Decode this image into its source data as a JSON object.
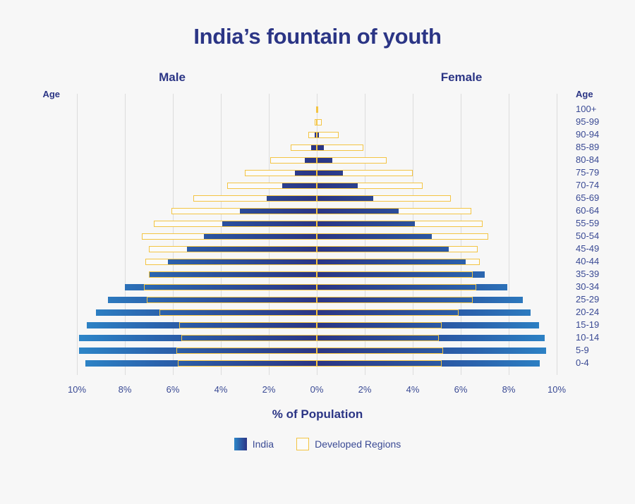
{
  "title": "India’s fountain of youth",
  "side_labels": {
    "male": "Male",
    "female": "Female"
  },
  "age_header": "Age",
  "xlabel": "% of Population",
  "x_ticks": [
    "10%",
    "8%",
    "6%",
    "4%",
    "2%",
    "0%",
    "2%",
    "4%",
    "6%",
    "8%",
    "10%"
  ],
  "legend": [
    {
      "name": "India",
      "swatch": "gradient-blue"
    },
    {
      "name": "Developed Regions",
      "swatch": "outline-yellow"
    }
  ],
  "colors": {
    "title": "#2b3585",
    "india_dark": "#2b3585",
    "india_light": "#2d86c8",
    "developed_outline": "#f3c443",
    "grid": "#dcdcdc",
    "background": "#f7f7f7"
  },
  "chart_data": {
    "type": "bar",
    "subtype": "population-pyramid",
    "title": "India’s fountain of youth",
    "xlabel": "% of Population",
    "ylabel": "Age",
    "xlim": [
      -10,
      10
    ],
    "x_tick_values": [
      -10,
      -8,
      -6,
      -4,
      -2,
      0,
      2,
      4,
      6,
      8,
      10
    ],
    "grid": true,
    "legend_position": "bottom",
    "categories": [
      "100+",
      "95-99",
      "90-94",
      "85-89",
      "80-84",
      "75-79",
      "70-74",
      "65-69",
      "60-64",
      "55-59",
      "50-54",
      "45-49",
      "40-44",
      "35-39",
      "30-34",
      "25-29",
      "20-24",
      "15-19",
      "10-14",
      "5-9",
      "0-4"
    ],
    "series": [
      {
        "name": "India - Male",
        "values": [
          0.0,
          0.02,
          0.08,
          0.25,
          0.5,
          0.9,
          1.45,
          2.1,
          3.2,
          3.95,
          4.7,
          5.4,
          6.2,
          7.0,
          8.0,
          8.7,
          9.2,
          9.6,
          9.9,
          9.9,
          9.65
        ]
      },
      {
        "name": "India - Female",
        "values": [
          0.0,
          0.02,
          0.1,
          0.3,
          0.65,
          1.1,
          1.7,
          2.35,
          3.4,
          4.1,
          4.8,
          5.5,
          6.2,
          7.0,
          7.95,
          8.6,
          8.9,
          9.25,
          9.5,
          9.55,
          9.3
        ]
      },
      {
        "name": "Developed Regions - Male",
        "values": [
          0.02,
          0.1,
          0.35,
          1.1,
          1.95,
          3.0,
          3.75,
          5.15,
          6.05,
          6.8,
          7.3,
          7.0,
          7.15,
          7.0,
          7.2,
          7.1,
          6.55,
          5.75,
          5.65,
          5.85,
          5.8
        ]
      },
      {
        "name": "Developed Regions - Female",
        "values": [
          0.05,
          0.2,
          0.9,
          1.95,
          2.9,
          4.0,
          4.4,
          5.6,
          6.45,
          6.9,
          7.15,
          6.7,
          6.8,
          6.5,
          6.65,
          6.5,
          5.9,
          5.2,
          5.1,
          5.25,
          5.2
        ]
      }
    ]
  }
}
